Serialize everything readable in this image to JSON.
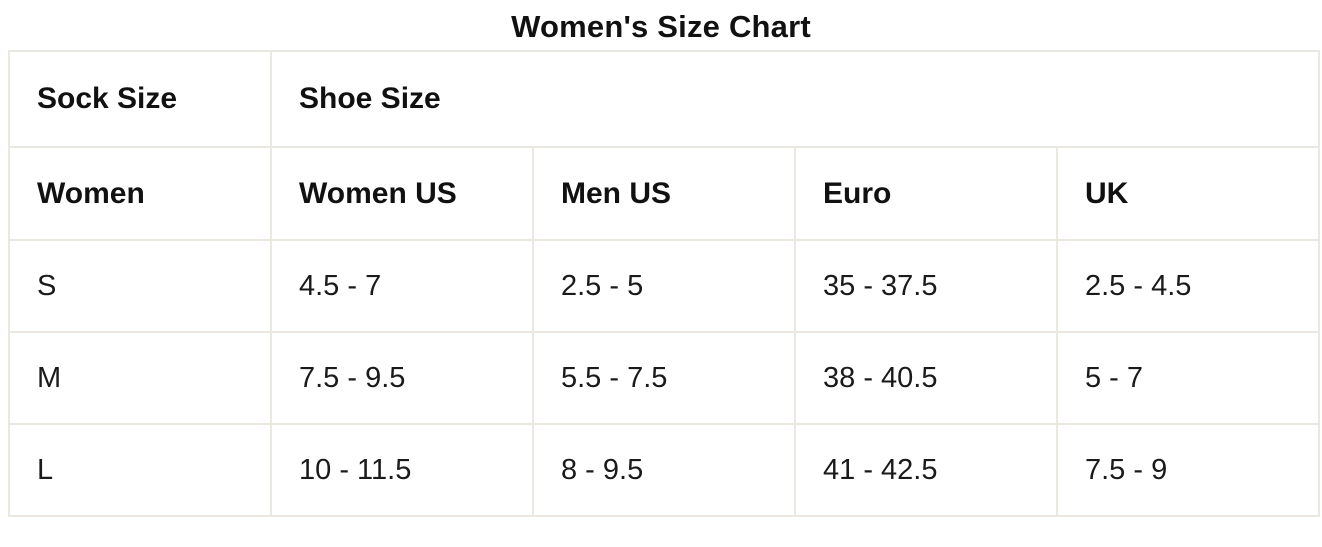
{
  "title": "Women's Size Chart",
  "table": {
    "group_headers": [
      {
        "label": "Sock Size",
        "colspan": 1
      },
      {
        "label": "Shoe Size",
        "colspan": 4
      }
    ],
    "column_headers": [
      "Women",
      "Women US",
      "Men US",
      "Euro",
      "UK"
    ],
    "rows": [
      [
        "S",
        "4.5 - 7",
        "2.5 - 5",
        "35 - 37.5",
        "2.5 - 4.5"
      ],
      [
        "M",
        "7.5 - 9.5",
        "5.5 - 7.5",
        "38 - 40.5",
        "5 - 7"
      ],
      [
        "L",
        "10 - 11.5",
        "8 - 9.5",
        "41 - 42.5",
        "7.5 - 9"
      ]
    ]
  },
  "colors": {
    "background": "#ffffff",
    "border": "#eae8e0",
    "text": "#1a1a1a"
  }
}
